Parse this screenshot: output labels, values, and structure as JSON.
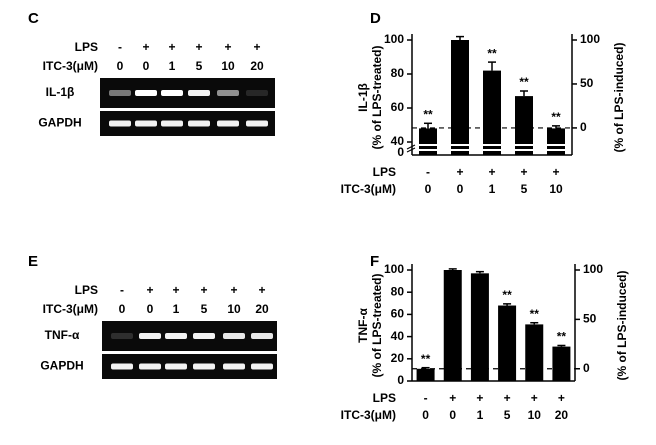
{
  "gels": [
    {
      "panel": "C",
      "row_labels": [
        "LPS",
        "ITC-3(μM)"
      ],
      "lps": [
        "-",
        "+",
        "+",
        "+",
        "+",
        "+"
      ],
      "itc": [
        "0",
        "0",
        "1",
        "5",
        "10",
        "20"
      ],
      "bands": [
        "IL-1β",
        "GAPDH"
      ]
    },
    {
      "panel": "E",
      "row_labels": [
        "LPS",
        "ITC-3(μM)"
      ],
      "lps": [
        "-",
        "+",
        "+",
        "+",
        "+",
        "+"
      ],
      "itc": [
        "0",
        "0",
        "1",
        "5",
        "10",
        "20"
      ],
      "bands": [
        "TNF-α",
        "GAPDH"
      ]
    }
  ],
  "chart_data": [
    {
      "type": "bar",
      "panel": "D",
      "y_label": [
        "IL-1β",
        "(% of LPS-treated)"
      ],
      "y2_label": "(% of LPS-induced)",
      "row_labels": [
        "LPS",
        "ITC-3(μM)"
      ],
      "lps": [
        "-",
        "+",
        "+",
        "+",
        "+"
      ],
      "categories": [
        "0",
        "0",
        "1",
        "5",
        "10"
      ],
      "values": [
        48,
        100,
        82,
        67,
        48
      ],
      "errors": [
        3,
        2,
        5,
        3,
        1.5
      ],
      "annotations": [
        "**",
        null,
        "**",
        "**",
        "**"
      ],
      "color": "#000000",
      "ylim": [
        40,
        100
      ],
      "yticks": [
        40,
        60,
        80,
        100
      ],
      "axis_break_label": "0",
      "y2lim": [
        -16,
        100
      ],
      "y2ticks": [
        0,
        50,
        100
      ],
      "reference_line_y2": 0
    },
    {
      "type": "bar",
      "panel": "F",
      "y_label": [
        "TNF-α",
        "(% of LPS-treated)"
      ],
      "y2_label": "(% of LPS-induced)",
      "row_labels": [
        "LPS",
        "ITC-3(μM)"
      ],
      "lps": [
        "-",
        "+",
        "+",
        "+",
        "+",
        "+"
      ],
      "categories": [
        "0",
        "0",
        "1",
        "5",
        "10",
        "20"
      ],
      "values": [
        11,
        100,
        97,
        68,
        51,
        31
      ],
      "errors": [
        1,
        1,
        1.5,
        1.5,
        1.5,
        1
      ],
      "annotations": [
        "**",
        null,
        null,
        "**",
        "**",
        "**"
      ],
      "color": "#000000",
      "ylim": [
        0,
        100
      ],
      "yticks": [
        0,
        20,
        40,
        60,
        80,
        100
      ],
      "y2lim": [
        -12.4,
        100
      ],
      "y2ticks": [
        0,
        50,
        100
      ],
      "reference_line_y2": 0
    }
  ]
}
